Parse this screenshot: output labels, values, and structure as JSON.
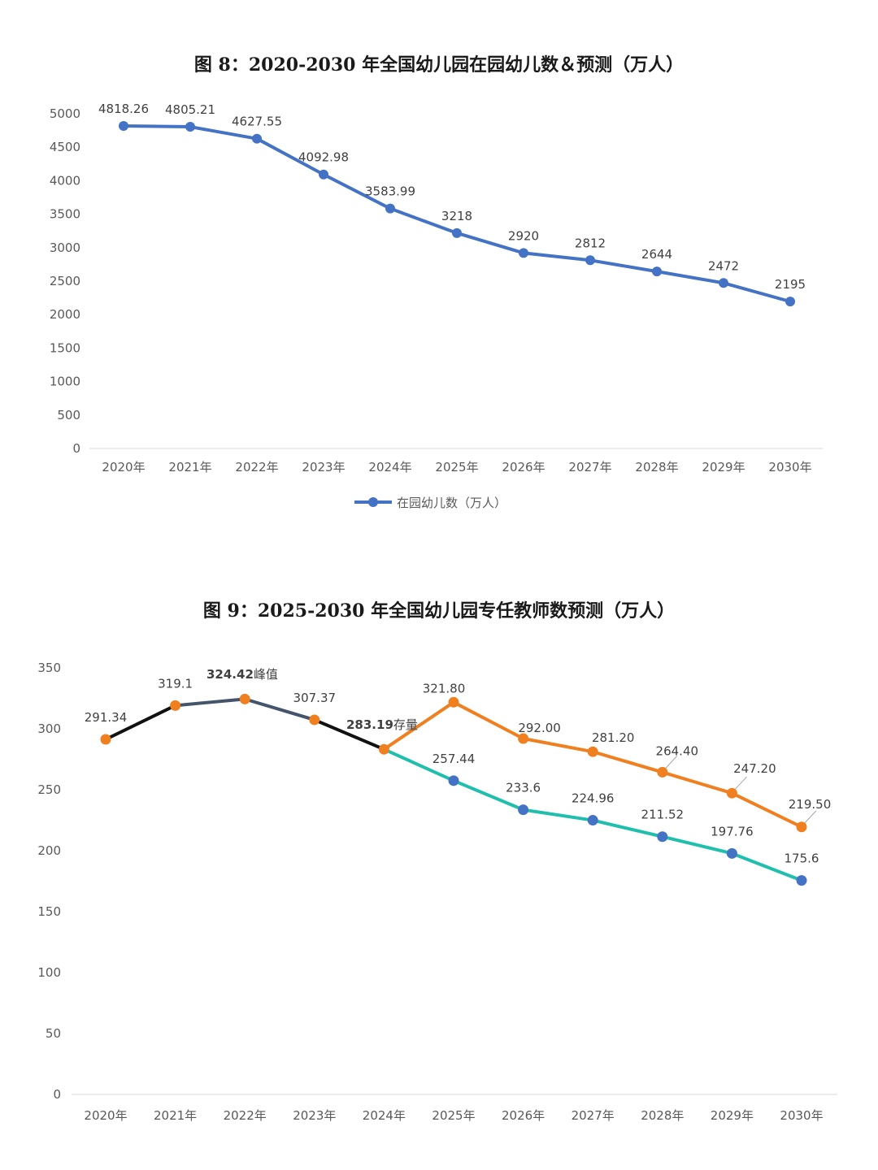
{
  "chart_data": [
    {
      "type": "line",
      "title": "图 8：2020-2030 年全国幼儿园在园幼儿数＆预测（万人）",
      "categories": [
        "2020年",
        "2021年",
        "2022年",
        "2023年",
        "2024年",
        "2025年",
        "2026年",
        "2027年",
        "2028年",
        "2029年",
        "2030年"
      ],
      "series": [
        {
          "name": "在园幼儿数（万人）",
          "color": "#4472C4",
          "values": [
            4818.26,
            4805.21,
            4627.55,
            4092.98,
            3583.99,
            3218,
            2920,
            2812,
            2644,
            2472,
            2195
          ],
          "labels": [
            "4818.26",
            "4805.21",
            "4627.55",
            "4092.98",
            "3583.99",
            "3218",
            "2920",
            "2812",
            "2644",
            "2472",
            "2195"
          ]
        }
      ],
      "ylim": [
        0,
        5000
      ],
      "yticks": [
        "0",
        "500",
        "1000",
        "1500",
        "2000",
        "2500",
        "3000",
        "3500",
        "4000",
        "4500",
        "5000"
      ],
      "legend": "bottom",
      "grid": false
    },
    {
      "type": "line",
      "title": "图 9：2025-2030 年全国幼儿园专任教师数预测（万人）",
      "categories": [
        "2020年",
        "2021年",
        "2022年",
        "2023年",
        "2024年",
        "2025年",
        "2026年",
        "2027年",
        "2028年",
        "2029年",
        "2030年"
      ],
      "series": [
        {
          "color": "#F07F20",
          "values": [
            291.34,
            319.1,
            324.42,
            307.37,
            283.19,
            321.8,
            292.0,
            281.2,
            264.4,
            247.2,
            219.5
          ],
          "labels": [
            "291.34",
            "319.1",
            "",
            "307.37",
            "",
            "321.80",
            "292.00",
            "281.20",
            "264.40",
            "247.20",
            "219.50"
          ]
        },
        {
          "color": "#4472C4",
          "values": [
            null,
            null,
            null,
            null,
            283.19,
            257.44,
            233.6,
            224.96,
            211.52,
            197.76,
            175.6
          ],
          "labels": [
            "",
            "",
            "",
            "",
            "",
            "257.44",
            "233.6",
            "224.96",
            "211.52",
            "197.76",
            "175.6"
          ]
        }
      ],
      "annotations": [
        {
          "index": 2,
          "value_text": "324.42",
          "suffix_text": "峰值"
        },
        {
          "index": 4,
          "value_text": "283.19",
          "suffix_text": "存量"
        }
      ],
      "line_segment_colors": [
        "#111111",
        "#44546A",
        "#44546A",
        "#111111",
        "#F07F20",
        "#F07F20",
        "#F07F20",
        "#F07F20",
        "#F07F20",
        "#F07F20"
      ],
      "lower_line_color": "#1FBFAD",
      "ylim": [
        0,
        350
      ],
      "yticks": [
        "0",
        "50",
        "100",
        "150",
        "200",
        "250",
        "300",
        "350"
      ],
      "legend": "none",
      "grid": false
    }
  ]
}
